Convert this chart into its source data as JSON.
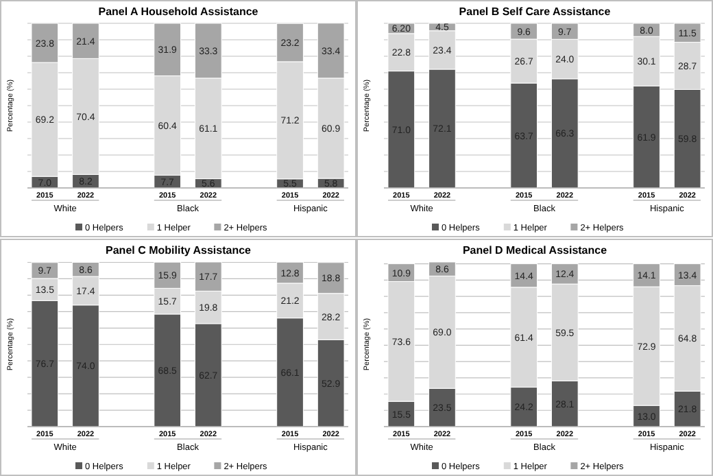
{
  "chart_data": [
    {
      "type": "bar",
      "stacked": true,
      "title": "Panel A  Household Assistance",
      "ylabel": "Percentage (%)",
      "categories": [
        "2015",
        "2022",
        null,
        "2015",
        "2022",
        null,
        "2015",
        "2022"
      ],
      "annotations": [
        "White",
        "Black",
        "Hispanic"
      ],
      "ylim": [
        0,
        100
      ],
      "yticks": [
        {
          "value": 0,
          "label": null
        },
        {
          "value": 10,
          "label": null
        },
        {
          "value": 20,
          "label": null
        },
        {
          "value": 30,
          "label": null
        },
        {
          "value": 40,
          "label": null
        },
        {
          "value": 50,
          "label": null
        },
        {
          "value": 60,
          "label": null
        },
        {
          "value": 70,
          "label": null
        },
        {
          "value": 80,
          "label": null
        },
        {
          "value": 90,
          "label": null
        },
        {
          "value": 100,
          "label": null
        }
      ],
      "grid": "y",
      "tick_labels": "x",
      "legend": "bottom",
      "series": [
        {
          "name": "0 Helpers",
          "color": "#595959",
          "values": [
            7.0,
            8.2,
            null,
            7.7,
            5.6,
            null,
            5.5,
            5.8
          ],
          "value_labels": [
            "7.0",
            "8.2",
            null,
            "7.7",
            "5.6",
            null,
            "5.5",
            "5.8"
          ]
        },
        {
          "name": "1 Helper",
          "color": "#d9d9d9",
          "values": [
            69.2,
            70.4,
            null,
            60.4,
            61.1,
            null,
            71.2,
            60.9
          ],
          "value_labels": [
            "69.2",
            "70.4",
            null,
            "60.4",
            "61.1",
            null,
            "71.2",
            "60.9"
          ]
        },
        {
          "name": "2+ Helpers",
          "color": "#a6a6a6",
          "values": [
            23.8,
            21.4,
            null,
            31.9,
            33.3,
            null,
            23.2,
            33.4
          ],
          "value_labels": [
            "23.8",
            "21.4",
            null,
            "31.9",
            "33.3",
            null,
            "23.2",
            "33.4"
          ]
        }
      ]
    },
    {
      "type": "bar",
      "stacked": true,
      "title": "Panel B  Self Care Assistance",
      "ylabel": "Percentage (%)",
      "categories": [
        "2015",
        "2022",
        null,
        "2015",
        "2022",
        null,
        "2015",
        "2022"
      ],
      "annotations": [
        "White",
        "Black",
        "Hispanic"
      ],
      "ylim": [
        0,
        100
      ],
      "yticks": [
        {
          "value": 0,
          "label": null
        },
        {
          "value": 10,
          "label": null
        },
        {
          "value": 20,
          "label": null
        },
        {
          "value": 30,
          "label": null
        },
        {
          "value": 40,
          "label": null
        },
        {
          "value": 50,
          "label": null
        },
        {
          "value": 60,
          "label": null
        },
        {
          "value": 70,
          "label": null
        },
        {
          "value": 80,
          "label": null
        },
        {
          "value": 90,
          "label": null
        },
        {
          "value": 100,
          "label": null
        }
      ],
      "grid": "y",
      "tick_labels": "x",
      "legend": "bottom",
      "series": [
        {
          "name": "0 Helpers",
          "color": "#595959",
          "values": [
            71.0,
            72.1,
            null,
            63.7,
            66.3,
            null,
            61.9,
            59.8
          ],
          "value_labels": [
            "71.0",
            "72.1",
            null,
            "63.7",
            "66.3",
            null,
            "61.9",
            "59.8"
          ]
        },
        {
          "name": "1 Helper",
          "color": "#d9d9d9",
          "values": [
            22.8,
            23.4,
            null,
            26.7,
            24.0,
            null,
            30.1,
            28.7
          ],
          "value_labels": [
            "22.8",
            "23.4",
            null,
            "26.7",
            "24.0",
            null,
            "30.1",
            "28.7"
          ]
        },
        {
          "name": "2+ Helpers",
          "color": "#a6a6a6",
          "values": [
            6.2,
            4.5,
            null,
            9.6,
            9.7,
            null,
            8.0,
            11.5
          ],
          "value_labels": [
            "6.20",
            "4.5",
            null,
            "9.6",
            "9.7",
            null,
            "8.0",
            "11.5"
          ]
        }
      ]
    },
    {
      "type": "bar",
      "stacked": true,
      "title": "Panel C  Mobility Assistance",
      "ylabel": "Percentage (%)",
      "categories": [
        "2015",
        "2022",
        null,
        "2015",
        "2022",
        null,
        "2015",
        "2022"
      ],
      "annotations": [
        "White",
        "Black",
        "Hispanic"
      ],
      "ylim": [
        0,
        100.2
      ],
      "yticks": [
        {
          "value": 0,
          "label": null
        },
        {
          "value": 10,
          "label": null
        },
        {
          "value": 20,
          "label": null
        },
        {
          "value": 30,
          "label": null
        },
        {
          "value": 40,
          "label": null
        },
        {
          "value": 50,
          "label": null
        },
        {
          "value": 60,
          "label": null
        },
        {
          "value": 70,
          "label": null
        },
        {
          "value": 80,
          "label": null
        },
        {
          "value": 90,
          "label": null
        },
        {
          "value": 100,
          "label": null
        }
      ],
      "grid": "y",
      "tick_labels": "x",
      "legend": "bottom",
      "series": [
        {
          "name": "0 Helpers",
          "color": "#595959",
          "values": [
            76.7,
            74.0,
            null,
            68.5,
            62.7,
            null,
            66.1,
            52.9
          ],
          "value_labels": [
            "76.7",
            "74.0",
            null,
            "68.5",
            "62.7",
            null,
            "66.1",
            "52.9"
          ]
        },
        {
          "name": "1 Helper",
          "color": "#d9d9d9",
          "values": [
            13.5,
            17.4,
            null,
            15.7,
            19.8,
            null,
            21.2,
            28.2
          ],
          "value_labels": [
            "13.5",
            "17.4",
            null,
            "15.7",
            "19.8",
            null,
            "21.2",
            "28.2"
          ]
        },
        {
          "name": "2+ Helpers",
          "color": "#a6a6a6",
          "values": [
            9.7,
            8.6,
            null,
            15.9,
            17.7,
            null,
            12.8,
            18.8
          ],
          "value_labels": [
            "9.7",
            "8.6",
            null,
            "15.9",
            "17.7",
            null,
            "12.8",
            "18.8"
          ]
        }
      ]
    },
    {
      "type": "bar",
      "stacked": true,
      "title": "Panel D  Medical Assistance",
      "ylabel": "Percentage (%)",
      "categories": [
        "2015",
        "2022",
        null,
        "2015",
        "2022",
        null,
        "2015",
        "2022"
      ],
      "annotations": [
        "White",
        "Black",
        "Hispanic"
      ],
      "ylim": [
        0,
        101.1
      ],
      "yticks": [
        {
          "value": 0,
          "label": null
        },
        {
          "value": 10,
          "label": null
        },
        {
          "value": 20,
          "label": null
        },
        {
          "value": 30,
          "label": null
        },
        {
          "value": 40,
          "label": null
        },
        {
          "value": 50,
          "label": null
        },
        {
          "value": 60,
          "label": null
        },
        {
          "value": 70,
          "label": null
        },
        {
          "value": 80,
          "label": null
        },
        {
          "value": 90,
          "label": null
        },
        {
          "value": 100,
          "label": null
        }
      ],
      "grid": "y",
      "tick_labels": "x",
      "legend": "bottom",
      "series": [
        {
          "name": "0 Helpers",
          "color": "#595959",
          "values": [
            15.5,
            23.5,
            null,
            24.2,
            28.1,
            null,
            13.0,
            21.8
          ],
          "value_labels": [
            "15.5",
            "23.5",
            null,
            "24.2",
            "28.1",
            null,
            "13.0",
            "21.8"
          ]
        },
        {
          "name": "1 Helper",
          "color": "#d9d9d9",
          "values": [
            73.6,
            69.0,
            null,
            61.4,
            59.5,
            null,
            72.9,
            64.8
          ],
          "value_labels": [
            "73.6",
            "69.0",
            null,
            "61.4",
            "59.5",
            null,
            "72.9",
            "64.8"
          ]
        },
        {
          "name": "2+ Helpers",
          "color": "#a6a6a6",
          "values": [
            10.9,
            8.6,
            null,
            14.4,
            12.4,
            null,
            14.1,
            13.4
          ],
          "value_labels": [
            "10.9",
            "8.6",
            null,
            "14.4",
            "12.4",
            null,
            "14.1",
            "13.4"
          ]
        }
      ]
    }
  ]
}
